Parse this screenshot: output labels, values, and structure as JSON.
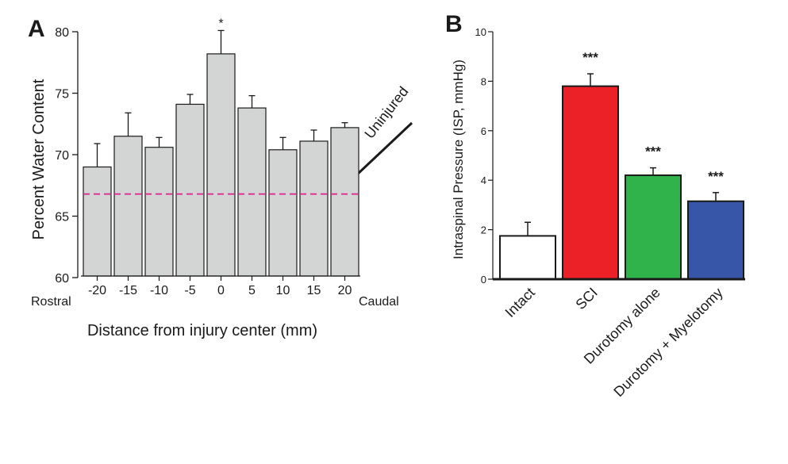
{
  "chart_data": [
    {
      "type": "bar",
      "panel_label": "A",
      "categories": [
        "-20",
        "-15",
        "-10",
        "-5",
        "0",
        "5",
        "10",
        "15",
        "20"
      ],
      "values": [
        69.0,
        71.5,
        70.6,
        74.1,
        78.2,
        73.8,
        70.4,
        71.1,
        72.2
      ],
      "errors": [
        1.9,
        1.9,
        0.8,
        0.8,
        1.9,
        1.0,
        1.0,
        0.9,
        0.4
      ],
      "ylabel": "Percent Water Content",
      "xlabel": "Distance from injury center (mm)",
      "ylim": [
        60,
        80
      ],
      "yticks": [
        "60",
        "65",
        "70",
        "75",
        "80"
      ],
      "x_end_left": "Rostral",
      "x_end_right": "Caudal",
      "bar_color": "#d3d4d4",
      "significance": [
        {
          "category": "0",
          "mark": "*"
        }
      ],
      "reference_line": {
        "value": 66.8,
        "label": "Uninjured",
        "color": "#e0218a",
        "style": "dashed"
      }
    },
    {
      "type": "bar",
      "panel_label": "B",
      "categories": [
        "Intact",
        "SCI",
        "Durotomy alone",
        "Durotomy + Myelotomy"
      ],
      "values": [
        1.75,
        7.8,
        4.2,
        3.15
      ],
      "errors": [
        0.55,
        0.5,
        0.3,
        0.35
      ],
      "colors": [
        "#ffffff",
        "#ec2027",
        "#2fb34a",
        "#3856a8"
      ],
      "ylabel": "Intraspinal Pressure (ISP, mmHg)",
      "ylim": [
        0,
        10
      ],
      "yticks": [
        "0",
        "2",
        "4",
        "6",
        "8",
        "10"
      ],
      "significance": [
        {
          "category": "SCI",
          "mark": "***"
        },
        {
          "category": "Durotomy alone",
          "mark": "***"
        },
        {
          "category": "Durotomy + Myelotomy",
          "mark": "***"
        }
      ]
    }
  ]
}
